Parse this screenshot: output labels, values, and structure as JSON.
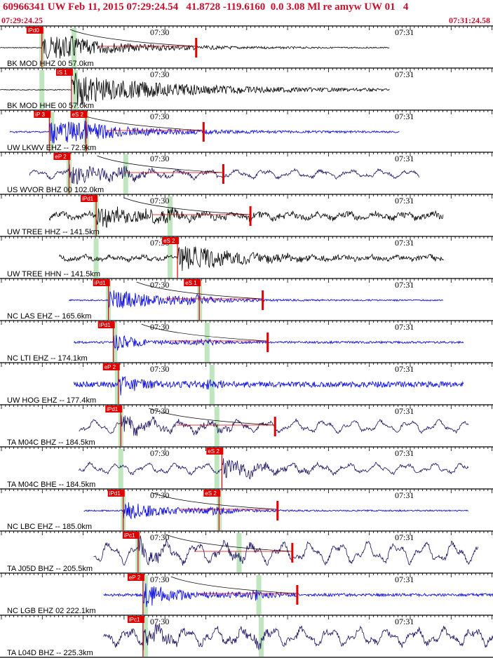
{
  "header": {
    "title": "60966341 UW Feb 11, 2015 07:29:24.54   41.8728 -119.6160  0.0 3.08 Ml re amyw UW 01   4",
    "start_time": "07:29:24.25",
    "end_time": "07:31:24.58"
  },
  "colors": {
    "header_text": "#c8102e",
    "pick": "#e00000",
    "window": "#bfe6bf",
    "trace_black": "#000000",
    "trace_blue": "#1010e0",
    "trace_navy": "#1a1060"
  },
  "minute_labels": [
    "07:30",
    "07:31"
  ],
  "traces": [
    {
      "label": "BK MOD HHZ 00 57.0km",
      "color": "black",
      "pick": "iPd0",
      "amp_pick": true,
      "start": 0.0,
      "end": 0.79,
      "onset": 0.085,
      "win1": 0.08,
      "win2": 0.145,
      "noise": 0.6,
      "peak": 16,
      "decay": 10,
      "lowfreq": 0
    },
    {
      "label": "BK MOD HHE 00 57.0km",
      "color": "black",
      "pick": "iS 1",
      "amp_pick": false,
      "start": 0.0,
      "end": 0.79,
      "onset": 0.145,
      "win1": 0.08,
      "win2": 0.148,
      "noise": 0.6,
      "peak": 20,
      "decay": 14,
      "lowfreq": 0
    },
    {
      "label": "UW LKWV EHZ -- 72.9km",
      "color": "blue",
      "pick": "iP 3",
      "pick2": "eS 2",
      "amp_pick": true,
      "start": 0.02,
      "end": 0.81,
      "onset": 0.1,
      "win1": 0.1,
      "win2": 0.17,
      "noise": 1.2,
      "peak": 16,
      "decay": 9,
      "lowfreq": 0
    },
    {
      "label": "US WVOR BHZ 00 102.0km",
      "color": "navy",
      "pick": "eP 2",
      "amp_pick": true,
      "start": 0.06,
      "end": 0.85,
      "onset": 0.14,
      "win1": 0.135,
      "win2": 0.25,
      "noise": 2,
      "peak": 12,
      "decay": 5,
      "lowfreq": 4
    },
    {
      "label": "UW TREE HHZ -- 141.5km",
      "color": "black",
      "pick": "iPd1",
      "amp_pick": true,
      "start": 0.1,
      "end": 0.9,
      "onset": 0.195,
      "win1": 0.19,
      "win2": 0.34,
      "noise": 4,
      "peak": 16,
      "decay": 4,
      "lowfreq": 3
    },
    {
      "label": "UW TREE HHN -- 141.5km",
      "color": "black",
      "pick": "eS 2",
      "amp_pick": false,
      "start": 0.12,
      "end": 0.9,
      "onset": 0.36,
      "win1": 0.19,
      "win2": 0.34,
      "noise": 3,
      "peak": 18,
      "decay": 6,
      "lowfreq": 2
    },
    {
      "label": "NC LAS EHZ -- 165.6km",
      "color": "blue",
      "pick": "iPd1",
      "pick2": "eS 1",
      "amp_pick": true,
      "start": 0.14,
      "end": 0.9,
      "onset": 0.22,
      "win1": 0.215,
      "win2": 0.4,
      "noise": 1,
      "peak": 16,
      "decay": 6,
      "lowfreq": 0
    },
    {
      "label": "NC LTI EHZ -- 174.1km",
      "color": "blue",
      "pick": "iPd1",
      "amp_pick": true,
      "start": 0.15,
      "end": 0.94,
      "onset": 0.23,
      "win1": 0.228,
      "win2": 0.415,
      "noise": 1.5,
      "peak": 12,
      "decay": 3,
      "lowfreq": 0
    },
    {
      "label": "UW HOG EHZ -- 177.4km",
      "color": "blue",
      "pick": "eP 2",
      "amp_pick": false,
      "start": 0.15,
      "end": 0.94,
      "onset": 0.24,
      "win1": 0.233,
      "win2": 0.425,
      "noise": 4,
      "peak": 14,
      "decay": 2,
      "lowfreq": 0
    },
    {
      "label": "TA M04C BHZ -- 184.5km",
      "color": "navy",
      "pick": "iPd1",
      "amp_pick": true,
      "start": 0.16,
      "end": 0.95,
      "onset": 0.245,
      "win1": 0.24,
      "win2": 0.435,
      "noise": 2,
      "peak": 14,
      "decay": 3,
      "lowfreq": 6
    },
    {
      "label": "TA M04C BHE -- 184.5km",
      "color": "navy",
      "pick": "eS 2",
      "amp_pick": false,
      "start": 0.16,
      "end": 0.95,
      "onset": 0.45,
      "win1": 0.24,
      "win2": 0.435,
      "noise": 2,
      "peak": 14,
      "decay": 4,
      "lowfreq": 5
    },
    {
      "label": "NC LBC EHZ -- 185.0km",
      "color": "blue",
      "pick": "iPd1",
      "pick2": "eS 2",
      "amp_pick": true,
      "start": 0.17,
      "end": 0.95,
      "onset": 0.25,
      "win1": 0.245,
      "win2": 0.44,
      "noise": 1,
      "peak": 14,
      "decay": 5,
      "lowfreq": 0
    },
    {
      "label": "TA J05D BHZ -- 205.5km",
      "color": "navy",
      "pick": "iPc1",
      "amp_pick": true,
      "start": 0.19,
      "end": 0.97,
      "onset": 0.28,
      "win1": 0.275,
      "win2": 0.48,
      "noise": 3,
      "peak": 16,
      "decay": 2,
      "lowfreq": 10
    },
    {
      "label": "NC LGB EHZ 02 222.1km",
      "color": "blue",
      "pick": "eP 2",
      "amp_pick": true,
      "start": 0.21,
      "end": 1.0,
      "onset": 0.29,
      "win1": 0.29,
      "win2": 0.52,
      "noise": 2,
      "peak": 18,
      "decay": 4,
      "lowfreq": 0
    },
    {
      "label": "TA L04D BHZ -- 225.3km",
      "color": "navy",
      "pick": "iPc1",
      "amp_pick": false,
      "start": 0.21,
      "end": 1.0,
      "onset": 0.29,
      "win1": 0.29,
      "win2": 0.525,
      "noise": 4,
      "peak": 14,
      "decay": 2,
      "lowfreq": 8
    }
  ]
}
